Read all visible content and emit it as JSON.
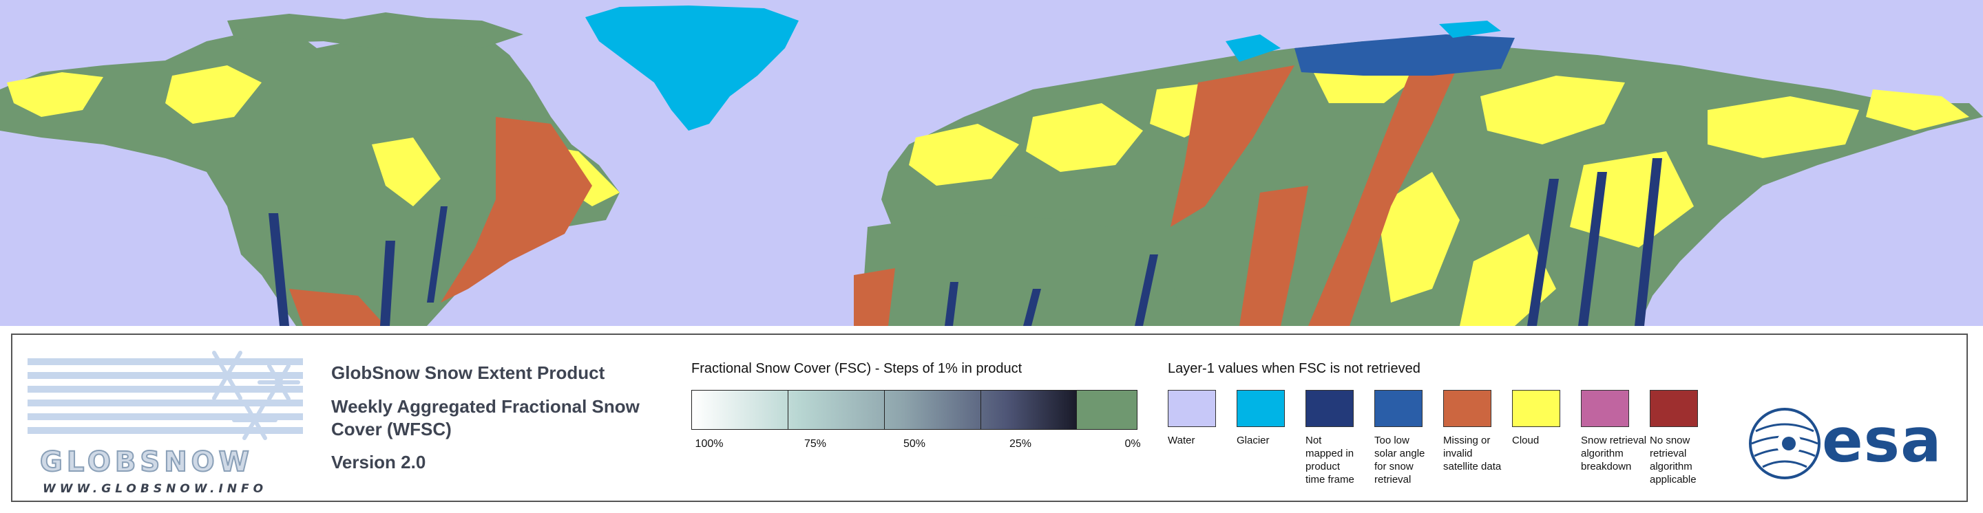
{
  "product": {
    "title": "GlobSnow Snow Extent Product",
    "subtitle": "Weekly Aggregated Fractional Snow Cover (WFSC)",
    "version": "Version 2.0"
  },
  "logo": {
    "wordmark": "GLOBSNOW",
    "url": "WWW.GLOBSNOW.INFO"
  },
  "esa_logo_text": "esa",
  "fsc_legend": {
    "title": "Fractional Snow Cover (FSC) - Steps of 1% in product",
    "tick_labels": [
      "100%",
      "75%",
      "50%",
      "25%",
      "0%"
    ],
    "zero_color": "#6f9870"
  },
  "layer1_legend": {
    "title": "Layer-1 values when FSC is not retrieved",
    "items": [
      {
        "label": "Water",
        "color": "#c7c8f8"
      },
      {
        "label": "Glacier",
        "color": "#00b4e6"
      },
      {
        "label": "Not mapped in product time frame",
        "color": "#233a7a"
      },
      {
        "label": "Too low solar angle for snow retrieval",
        "color": "#2a5ea8"
      },
      {
        "label": "Missing or invalid satellite data",
        "color": "#cc6640"
      },
      {
        "label": "Cloud",
        "color": "#ffff55"
      },
      {
        "label": "Snow retrieval algorithm breakdown",
        "color": "#c065a0"
      },
      {
        "label": "No snow retrieval algorithm applicable",
        "color": "#9e2f2f"
      }
    ]
  }
}
